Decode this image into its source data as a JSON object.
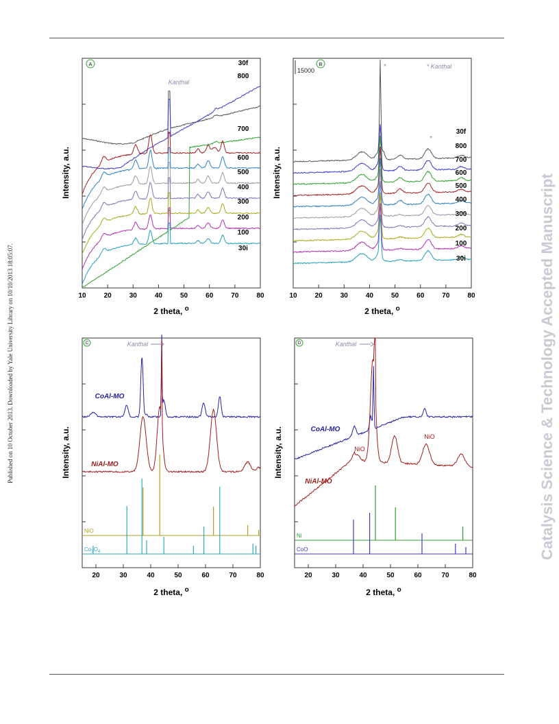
{
  "page": {
    "watermark_left": "Published on 10 October 2013. Downloaded by Yale University Library on 10/10/2013 18:05:07.",
    "watermark_right": "Catalysis Science & Technology Accepted Manuscript"
  },
  "chart_data": [
    {
      "panel": "A",
      "type": "line",
      "xlabel": "2 theta, ",
      "xlabel_unit": "o",
      "ylabel": "Intensity, a.u.",
      "xlim": [
        10,
        80
      ],
      "x_ticks": [
        "10",
        "20",
        "30",
        "40",
        "50",
        "60",
        "70",
        "80"
      ],
      "annotation": "Kanthal",
      "series": [
        {
          "name": "30f",
          "color": "#555555"
        },
        {
          "name": "800",
          "color": "#3a3ac8"
        },
        {
          "name": "700",
          "color": "#2da02d"
        },
        {
          "name": "600",
          "color": "#a02020"
        },
        {
          "name": "500",
          "color": "#2f7fbf"
        },
        {
          "name": "400",
          "color": "#9a9aa8"
        },
        {
          "name": "300",
          "color": "#7a74b8"
        },
        {
          "name": "200",
          "color": "#a8a818"
        },
        {
          "name": "100",
          "color": "#b030b0"
        },
        {
          "name": "30i",
          "color": "#20a0b8"
        }
      ]
    },
    {
      "panel": "B",
      "type": "line",
      "xlabel": "2 theta, ",
      "xlabel_unit": "o",
      "ylabel": "Intensity, a.u.",
      "xlim": [
        10,
        80
      ],
      "x_ticks": [
        "10",
        "20",
        "30",
        "40",
        "50",
        "60",
        "70",
        "80"
      ],
      "scale_bar": "15000",
      "annotation": "* Kanthal",
      "star": "*",
      "series": [
        {
          "name": "30f",
          "color": "#555555"
        },
        {
          "name": "800",
          "color": "#3a3ac8"
        },
        {
          "name": "700",
          "color": "#2da02d"
        },
        {
          "name": "600",
          "color": "#a02020"
        },
        {
          "name": "500",
          "color": "#2f7fbf"
        },
        {
          "name": "400",
          "color": "#9a9aa8"
        },
        {
          "name": "300",
          "color": "#7a74b8"
        },
        {
          "name": "200",
          "color": "#a8a818"
        },
        {
          "name": "100",
          "color": "#b030b0"
        },
        {
          "name": "30i",
          "color": "#20a0b8"
        }
      ]
    },
    {
      "panel": "C",
      "type": "line",
      "xlabel": "2 theta, ",
      "xlabel_unit": "o",
      "ylabel": "Intensity, a.u.",
      "xlim": [
        15,
        80
      ],
      "x_ticks": [
        "20",
        "30",
        "40",
        "50",
        "60",
        "70",
        "80"
      ],
      "annotation": "Kanthal",
      "series": [
        {
          "name": "CoAl-MO",
          "color": "#2323a0"
        },
        {
          "name": "NiAl-MO",
          "color": "#a01c1c"
        }
      ],
      "references": [
        {
          "name": "NiO",
          "color": "#b0a020",
          "peaks": [
            37.2,
            43.3,
            62.9,
            75.4,
            79.4
          ]
        },
        {
          "name": "Co",
          "sub": "3",
          "mid": "O",
          "sub2": "4",
          "color": "#30a8c0",
          "peaks": [
            19.0,
            31.3,
            36.8,
            38.5,
            44.8,
            55.6,
            59.4,
            65.2,
            77.3,
            78.4
          ]
        }
      ]
    },
    {
      "panel": "D",
      "type": "line",
      "xlabel": "2 theta, ",
      "xlabel_unit": "o",
      "ylabel": "Intensity, a.u.",
      "xlim": [
        15,
        80
      ],
      "x_ticks": [
        "20",
        "30",
        "40",
        "50",
        "60",
        "70",
        "80"
      ],
      "annotation": "Kanthal",
      "peak_labels": [
        "NiO",
        "NiO"
      ],
      "series": [
        {
          "name": "CoAl-MO",
          "color": "#2323a0"
        },
        {
          "name": "NiAl-MO",
          "color": "#a01c1c"
        }
      ],
      "references": [
        {
          "name": "Ni",
          "color": "#30a030",
          "peaks": [
            44.5,
            51.8,
            76.4
          ]
        },
        {
          "name": "CoO",
          "color": "#3a3ad0",
          "peaks": [
            36.5,
            42.4,
            61.5,
            73.7,
            77.5
          ]
        }
      ]
    }
  ]
}
